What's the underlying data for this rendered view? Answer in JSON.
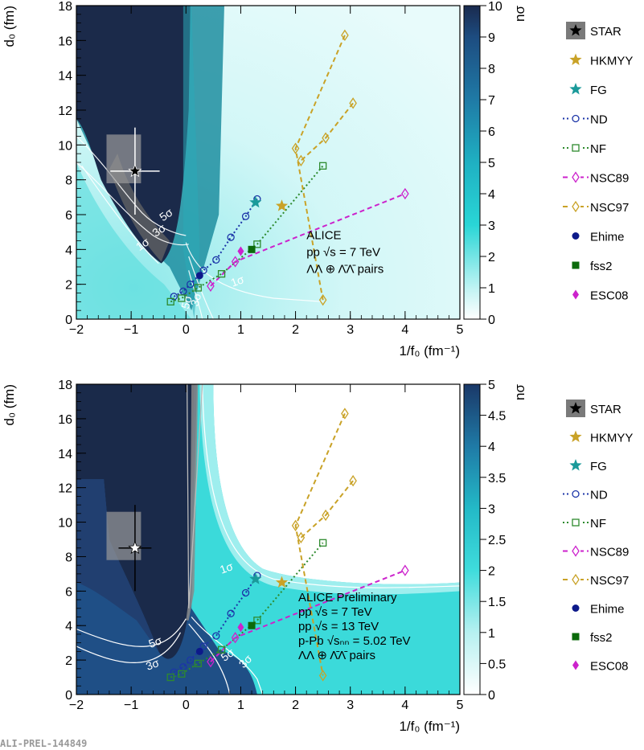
{
  "watermark": "ALI-PREL-144849",
  "chart_data": [
    {
      "type": "heatmap",
      "xlabel": "1/f₀ (fm⁻¹)",
      "ylabel": "d₀ (fm)",
      "zlabel": "nσ",
      "xlim": [
        -2,
        5
      ],
      "ylim": [
        0,
        18
      ],
      "zlim": [
        0,
        10
      ],
      "xticks": [
        "−2",
        "−1",
        "0",
        "1",
        "2",
        "3",
        "4",
        "5"
      ],
      "yticks": [
        "0",
        "2",
        "4",
        "6",
        "8",
        "10",
        "12",
        "14",
        "16",
        "18"
      ],
      "zticks": [
        "0",
        "1",
        "2",
        "3",
        "4",
        "5",
        "6",
        "7",
        "8",
        "9",
        "10"
      ],
      "contour_labels": [
        "1σ",
        "3σ",
        "5σ",
        "1σ",
        "3σ",
        "5σ"
      ],
      "annotation": [
        "ALICE",
        "pp √s = 7 TeV",
        "ΛΛ ⊕ Λ̄Λ̄ pairs"
      ],
      "star": {
        "x": -0.93,
        "y": 8.5,
        "xerr": 0.45,
        "yerr": 2.5,
        "box": {
          "x0": -1.45,
          "x1": -0.82,
          "y0": 7.8,
          "y1": 10.6
        }
      }
    },
    {
      "type": "heatmap",
      "xlabel": "1/f₀ (fm⁻¹)",
      "ylabel": "d₀ (fm)",
      "zlabel": "nσ",
      "xlim": [
        -2,
        5
      ],
      "ylim": [
        0,
        18
      ],
      "zlim": [
        0,
        5
      ],
      "xticks": [
        "−2",
        "−1",
        "0",
        "1",
        "2",
        "3",
        "4",
        "5"
      ],
      "yticks": [
        "0",
        "2",
        "4",
        "6",
        "8",
        "10",
        "12",
        "14",
        "16",
        "18"
      ],
      "zticks": [
        "0",
        "0.5",
        "1",
        "1.5",
        "2",
        "2.5",
        "3",
        "3.5",
        "4",
        "4.5",
        "5"
      ],
      "contour_labels": [
        "1σ",
        "5σ",
        "3σ",
        "5σ",
        "3σ"
      ],
      "annotation": [
        "ALICE Preliminary",
        "pp √s = 7 TeV",
        "pp √s = 13 TeV",
        "p-Pb √sₙₙ = 5.02 TeV",
        "ΛΛ ⊕ Λ̄Λ̄ pairs"
      ],
      "star": {
        "x": -0.93,
        "y": 8.5,
        "xerr": 0.3,
        "yerr": 2.5,
        "box": {
          "x0": -1.45,
          "x1": -0.82,
          "y0": 7.8,
          "y1": 10.6
        }
      }
    }
  ],
  "models": {
    "ND": {
      "color": "#1c35a8",
      "points": [
        [
          -0.22,
          1.3
        ],
        [
          -0.05,
          1.6
        ],
        [
          0.08,
          2.0
        ],
        [
          0.32,
          2.8
        ],
        [
          0.55,
          3.4
        ],
        [
          0.82,
          4.7
        ],
        [
          1.09,
          5.9
        ],
        [
          1.3,
          6.9
        ]
      ]
    },
    "NF": {
      "color": "#2e8a2e",
      "points": [
        [
          -0.28,
          1.0
        ],
        [
          -0.08,
          1.2
        ],
        [
          0.22,
          1.8
        ],
        [
          0.65,
          2.6
        ],
        [
          1.3,
          4.3
        ],
        [
          2.5,
          8.8
        ]
      ]
    },
    "NSC89": {
      "color": "#cc22cc",
      "points": [
        [
          0.45,
          1.9
        ],
        [
          0.9,
          3.3
        ],
        [
          4.0,
          7.2
        ]
      ]
    },
    "NSC97": {
      "color": "#c9a227",
      "points": [
        [
          2.9,
          16.3
        ],
        [
          2.0,
          9.8
        ],
        [
          2.5,
          1.1
        ]
      ],
      "points2": [
        [
          3.05,
          12.4
        ],
        [
          2.55,
          10.4
        ],
        [
          2.1,
          9.1
        ]
      ]
    },
    "HKMYY": {
      "color": "#c9a227",
      "point": [
        1.75,
        6.5
      ]
    },
    "FG": {
      "color": "#1a9a9a",
      "point": [
        1.27,
        6.7
      ]
    },
    "Ehime": {
      "color": "#0d1a8a",
      "point": [
        0.25,
        2.5
      ]
    },
    "fss2": {
      "color": "#0b6a0b",
      "point": [
        1.2,
        4.0
      ]
    },
    "ESC08": {
      "color": "#cc22cc",
      "point": [
        1.0,
        3.9
      ]
    }
  },
  "legend": [
    {
      "name": "STAR",
      "marker": "star-box"
    },
    {
      "name": "HKMYY",
      "marker": "star-gold"
    },
    {
      "name": "FG",
      "marker": "star-teal"
    },
    {
      "name": "ND",
      "marker": "open-circle"
    },
    {
      "name": "NF",
      "marker": "open-square"
    },
    {
      "name": "NSC89",
      "marker": "open-diamond-magenta"
    },
    {
      "name": "NSC97",
      "marker": "open-diamond-gold"
    },
    {
      "name": "Ehime",
      "marker": "filled-circle"
    },
    {
      "name": "fss2",
      "marker": "filled-square"
    },
    {
      "name": "ESC08",
      "marker": "filled-diamond"
    }
  ]
}
